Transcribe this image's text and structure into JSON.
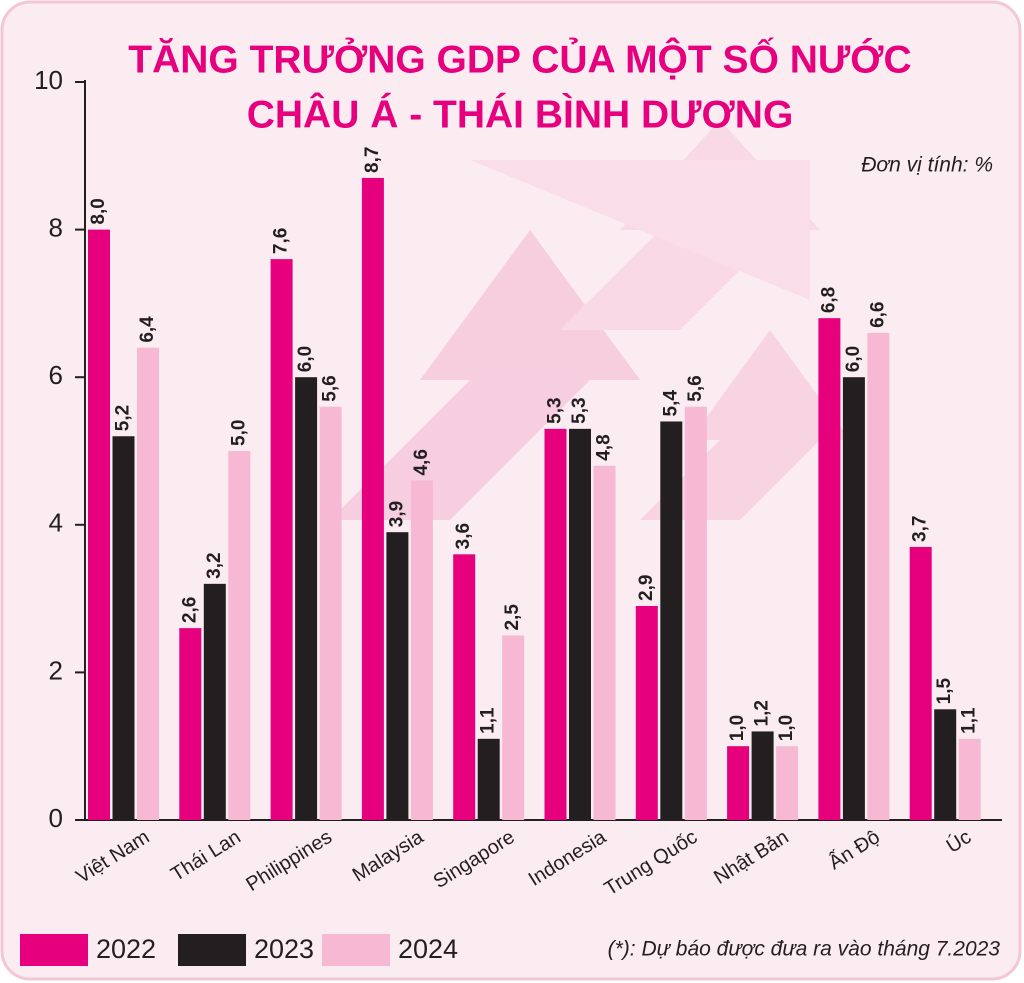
{
  "chart_data": {
    "type": "bar",
    "title": [
      "TĂNG TRƯỞNG GDP CỦA MỘT SỐ NƯỚC",
      "CHÂU Á - THÁI BÌNH DƯƠNG"
    ],
    "subtitle": "Đơn vị tính: %",
    "note": "(*): Dự báo được đưa ra vào tháng 7.2023",
    "categories": [
      "Việt Nam",
      "Thái Lan",
      "Philippines",
      "Malaysia",
      "Singapore",
      "Indonesia",
      "Trung Quốc",
      "Nhật Bản",
      "Ấn Độ",
      "Úc"
    ],
    "series": [
      {
        "name": "2022",
        "color": "#e6007e",
        "values": [
          8.0,
          2.6,
          7.6,
          8.7,
          3.6,
          5.3,
          2.9,
          1.0,
          6.8,
          3.7
        ],
        "value_labels": [
          "8,0",
          "2,6",
          "7,6",
          "8,7",
          "3,6",
          "5,3",
          "2,9",
          "1,0",
          "6,8",
          "3,7"
        ]
      },
      {
        "name": "2023",
        "color": "#231f20",
        "values": [
          5.2,
          3.2,
          6.0,
          3.9,
          1.1,
          5.3,
          5.4,
          1.2,
          6.0,
          1.5
        ],
        "value_labels": [
          "5,2",
          "3,2",
          "6,0",
          "3,9",
          "1,1",
          "5,3",
          "5,4",
          "1,2",
          "6,0",
          "1,5"
        ]
      },
      {
        "name": "2024",
        "color": "#f6b8d2",
        "values": [
          6.4,
          5.0,
          5.6,
          4.6,
          2.5,
          4.8,
          5.6,
          1.0,
          6.6,
          1.1
        ],
        "value_labels": [
          "6,4",
          "5,0",
          "5,6",
          "4,6",
          "2,5",
          "4,8",
          "5,6",
          "1,0",
          "6,6",
          "1,1"
        ]
      }
    ],
    "ylim": [
      0,
      10
    ],
    "yticks": [
      0,
      2,
      4,
      6,
      8,
      10
    ],
    "grid": false
  }
}
